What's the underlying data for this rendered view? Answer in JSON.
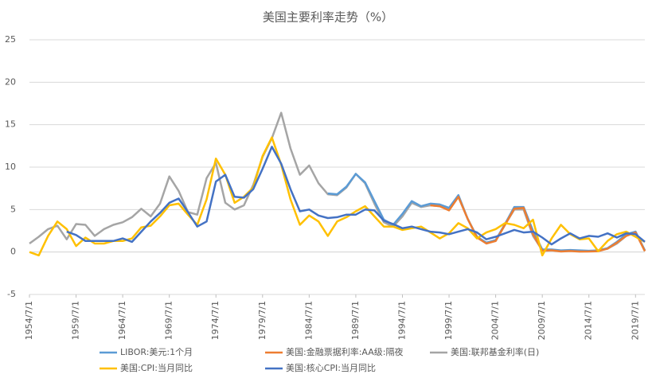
{
  "chart_data": {
    "type": "line",
    "title": "美国主要利率走势（%）",
    "x": [
      1954.5,
      1955.5,
      1956.5,
      1957.5,
      1958.5,
      1959.5,
      1960.5,
      1961.5,
      1962.5,
      1963.5,
      1964.5,
      1965.5,
      1966.5,
      1967.5,
      1968.5,
      1969.5,
      1970.5,
      1971.5,
      1972.5,
      1973.5,
      1974.5,
      1975.5,
      1976.5,
      1977.5,
      1978.5,
      1979.5,
      1980.5,
      1981.5,
      1982.5,
      1983.5,
      1984.5,
      1985.5,
      1986.5,
      1987.5,
      1988.5,
      1989.5,
      1990.5,
      1991.5,
      1992.5,
      1993.5,
      1994.5,
      1995.5,
      1996.5,
      1997.5,
      1998.5,
      1999.5,
      2000.5,
      2001.5,
      2002.5,
      2003.5,
      2004.5,
      2005.5,
      2006.5,
      2007.5,
      2008.5,
      2009.5,
      2010.5,
      2011.5,
      2012.5,
      2013.5,
      2014.5,
      2015.5,
      2016.5,
      2017.5,
      2018.5,
      2019.5,
      2020.5
    ],
    "series": [
      {
        "name": "LIBOR:美元:1个月",
        "color": "#5b9bd5",
        "values": [
          null,
          null,
          null,
          null,
          null,
          null,
          null,
          null,
          null,
          null,
          null,
          null,
          null,
          null,
          null,
          null,
          null,
          null,
          null,
          null,
          null,
          null,
          null,
          null,
          null,
          null,
          null,
          null,
          null,
          null,
          null,
          null,
          6.9,
          6.8,
          7.7,
          9.2,
          8.2,
          6.0,
          3.8,
          3.2,
          4.5,
          6.0,
          5.4,
          5.7,
          5.6,
          5.2,
          6.7,
          3.9,
          1.8,
          1.1,
          1.4,
          3.3,
          5.3,
          5.3,
          2.5,
          0.3,
          0.3,
          0.19,
          0.24,
          0.19,
          0.15,
          0.19,
          0.46,
          1.2,
          2.1,
          2.4,
          0.2
        ]
      },
      {
        "name": "美国:金融票据利率:AA级:隔夜",
        "color": "#ed7d31",
        "values": [
          null,
          null,
          null,
          null,
          null,
          null,
          null,
          null,
          null,
          null,
          null,
          null,
          null,
          null,
          null,
          null,
          null,
          null,
          null,
          null,
          null,
          null,
          null,
          null,
          null,
          null,
          null,
          null,
          null,
          null,
          null,
          null,
          null,
          null,
          null,
          null,
          null,
          null,
          null,
          null,
          null,
          null,
          null,
          5.5,
          5.4,
          4.9,
          6.5,
          3.9,
          1.7,
          1.0,
          1.3,
          3.2,
          5.1,
          5.2,
          2.1,
          0.15,
          0.2,
          0.06,
          0.12,
          0.05,
          0.06,
          0.1,
          0.4,
          1.1,
          1.9,
          2.3,
          0.1
        ]
      },
      {
        "name": "美国:联邦基金利率(日)",
        "color": "#a5a5a5",
        "values": [
          1.0,
          1.8,
          2.7,
          3.1,
          1.5,
          3.3,
          3.2,
          1.9,
          2.7,
          3.2,
          3.5,
          4.1,
          5.1,
          4.2,
          5.7,
          8.9,
          7.2,
          4.7,
          4.4,
          8.7,
          10.5,
          5.8,
          5.0,
          5.5,
          7.9,
          11.2,
          13.4,
          16.4,
          12.2,
          9.1,
          10.2,
          8.1,
          6.8,
          6.7,
          7.6,
          9.2,
          8.1,
          5.7,
          3.5,
          3.0,
          4.2,
          5.8,
          5.3,
          5.5,
          5.4,
          5.0,
          6.5,
          3.9,
          1.7,
          1.1,
          1.3,
          3.2,
          5.0,
          5.0,
          1.9,
          0.2,
          0.2,
          0.1,
          0.15,
          0.1,
          0.1,
          0.13,
          0.4,
          1.0,
          1.9,
          2.4,
          0.1
        ]
      },
      {
        "name": "美国:CPI:当月同比",
        "color": "#ffc000",
        "values": [
          0.0,
          -0.4,
          1.9,
          3.6,
          2.7,
          0.7,
          1.7,
          1.0,
          1.0,
          1.3,
          1.3,
          1.6,
          2.9,
          3.1,
          4.2,
          5.5,
          5.7,
          4.4,
          3.2,
          6.2,
          11.0,
          9.1,
          5.8,
          6.5,
          7.6,
          11.3,
          13.5,
          10.3,
          6.2,
          3.2,
          4.3,
          3.6,
          1.9,
          3.6,
          4.1,
          4.8,
          5.4,
          4.2,
          3.0,
          3.0,
          2.6,
          2.8,
          3.0,
          2.3,
          1.6,
          2.2,
          3.4,
          2.8,
          1.6,
          2.3,
          2.7,
          3.4,
          3.2,
          2.8,
          3.8,
          -0.4,
          1.6,
          3.2,
          2.1,
          1.5,
          1.6,
          0.1,
          1.3,
          2.1,
          2.4,
          1.8,
          1.2
        ]
      },
      {
        "name": "美国:核心CPI:当月同比",
        "color": "#4472c4",
        "values": [
          null,
          null,
          null,
          null,
          2.4,
          2.0,
          1.3,
          1.3,
          1.3,
          1.3,
          1.6,
          1.2,
          2.4,
          3.6,
          4.6,
          5.8,
          6.3,
          4.7,
          3.0,
          3.6,
          8.3,
          9.1,
          6.5,
          6.4,
          7.4,
          9.8,
          12.4,
          10.4,
          7.4,
          4.8,
          5.0,
          4.3,
          4.0,
          4.1,
          4.4,
          4.4,
          5.0,
          4.9,
          3.7,
          3.3,
          2.8,
          3.0,
          2.7,
          2.4,
          2.3,
          2.1,
          2.4,
          2.7,
          2.3,
          1.5,
          1.8,
          2.2,
          2.6,
          2.3,
          2.4,
          1.7,
          0.9,
          1.6,
          2.2,
          1.6,
          1.9,
          1.8,
          2.2,
          1.7,
          2.2,
          2.1,
          1.2
        ]
      }
    ],
    "xlim": [
      1954.5,
      2020.5
    ],
    "xticks": [
      {
        "value": 1954.5,
        "label": "1954/7/1"
      },
      {
        "value": 1959.5,
        "label": "1959/7/1"
      },
      {
        "value": 1964.5,
        "label": "1964/7/1"
      },
      {
        "value": 1969.5,
        "label": "1969/7/1"
      },
      {
        "value": 1974.5,
        "label": "1974/7/1"
      },
      {
        "value": 1979.5,
        "label": "1979/7/1"
      },
      {
        "value": 1984.5,
        "label": "1984/7/1"
      },
      {
        "value": 1989.5,
        "label": "1989/7/1"
      },
      {
        "value": 1994.5,
        "label": "1994/7/1"
      },
      {
        "value": 1999.5,
        "label": "1999/7/1"
      },
      {
        "value": 2004.5,
        "label": "2004/7/1"
      },
      {
        "value": 2009.5,
        "label": "2009/7/1"
      },
      {
        "value": 2014.5,
        "label": "2014/7/1"
      },
      {
        "value": 2019.5,
        "label": "2019/7/1"
      }
    ],
    "ylim": [
      -5,
      25
    ],
    "yticks": [
      -5,
      0,
      5,
      10,
      15,
      20,
      25
    ],
    "grid": true
  }
}
